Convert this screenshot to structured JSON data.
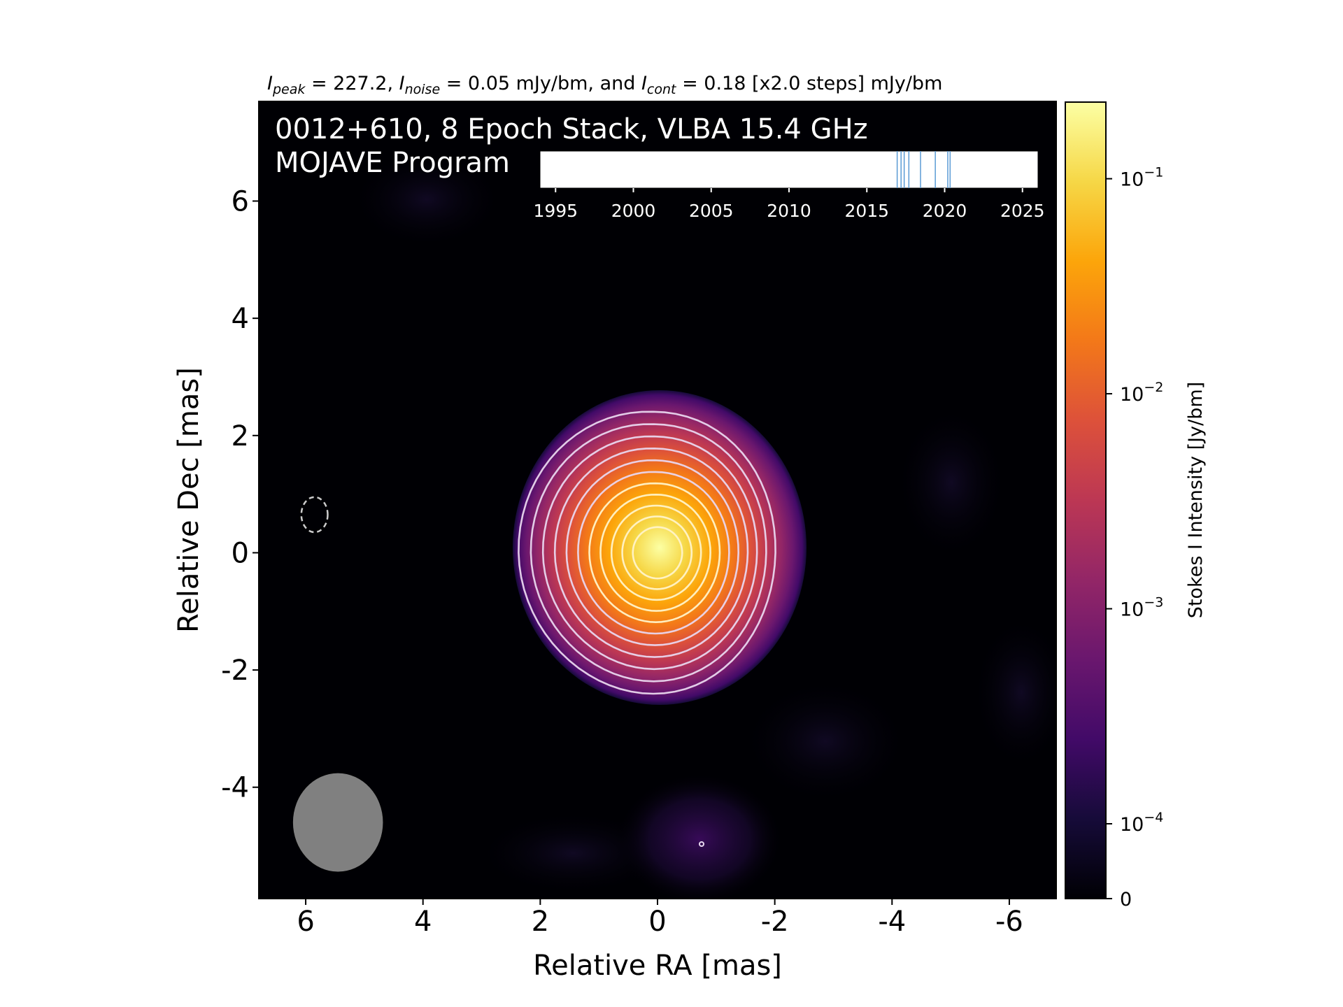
{
  "chart_data": {
    "type": "heatmap",
    "header": {
      "I_peak_label": "I",
      "I_peak_sub": "peak",
      "I_peak_value": " = 227.2, ",
      "I_noise_label": "I",
      "I_noise_sub": "noise",
      "I_noise_value": " = 0.05 mJy/bm, and ",
      "I_cont_label": "I",
      "I_cont_sub": "cont",
      "I_cont_value": " = 0.18 [x2.0 steps] mJy/bm"
    },
    "title_line1": "0012+610, 8 Epoch Stack, VLBA 15.4 GHz",
    "title_line2": "MOJAVE Program",
    "xlabel": "Relative RA [mas]",
    "ylabel": "Relative Dec [mas]",
    "xlim": [
      6.8,
      -6.8
    ],
    "ylim": [
      -5.9,
      7.7
    ],
    "xticks": [
      6,
      4,
      2,
      0,
      -2,
      -4,
      -6
    ],
    "xtick_labels": [
      "6",
      "4",
      "2",
      "0",
      "-2",
      "-4",
      "-6"
    ],
    "yticks": [
      -4,
      -2,
      0,
      2,
      4,
      6
    ],
    "ytick_labels": [
      "-4",
      "-2",
      "0",
      "2",
      "4",
      "6"
    ],
    "peak_position": [
      0,
      0
    ],
    "peak_intensity_mJy_per_beam": 227.2,
    "noise_mJy_per_beam": 0.05,
    "lowest_contour_mJy_per_beam": 0.18,
    "contour_step_factor": 2.0,
    "contour_count": 11,
    "beam": {
      "center": [
        5.45,
        -4.6
      ],
      "major_mas": 1.4,
      "minor_mas": 1.3,
      "pa_deg": 0,
      "color": "#808080"
    },
    "dashed_marker": {
      "center": [
        5.85,
        0.65
      ],
      "width_mas": 0.45,
      "height_mas": 0.6
    },
    "colorbar": {
      "label": "Stokes I Intensity [Jy/bm]",
      "scale": "log",
      "colormap": "inferno",
      "tick_values": [
        0,
        0.0001,
        0.001,
        0.01,
        0.1
      ],
      "tick_labels": [
        {
          "base": "0",
          "exp": ""
        },
        {
          "base": "10",
          "exp": "−4"
        },
        {
          "base": "10",
          "exp": "−3"
        },
        {
          "base": "10",
          "exp": "−2"
        },
        {
          "base": "10",
          "exp": "−1"
        }
      ]
    },
    "epoch_timeline": {
      "xlim": [
        1994,
        2026
      ],
      "ticks": [
        1995,
        2000,
        2005,
        2010,
        2015,
        2020,
        2025
      ],
      "tick_labels": [
        "1995",
        "2000",
        "2005",
        "2010",
        "2015",
        "2020",
        "2025"
      ],
      "epochs": [
        2016.95,
        2017.2,
        2017.4,
        2017.7,
        2018.45,
        2019.4,
        2020.2,
        2020.35
      ],
      "line_color": "#5a9bd5"
    }
  }
}
